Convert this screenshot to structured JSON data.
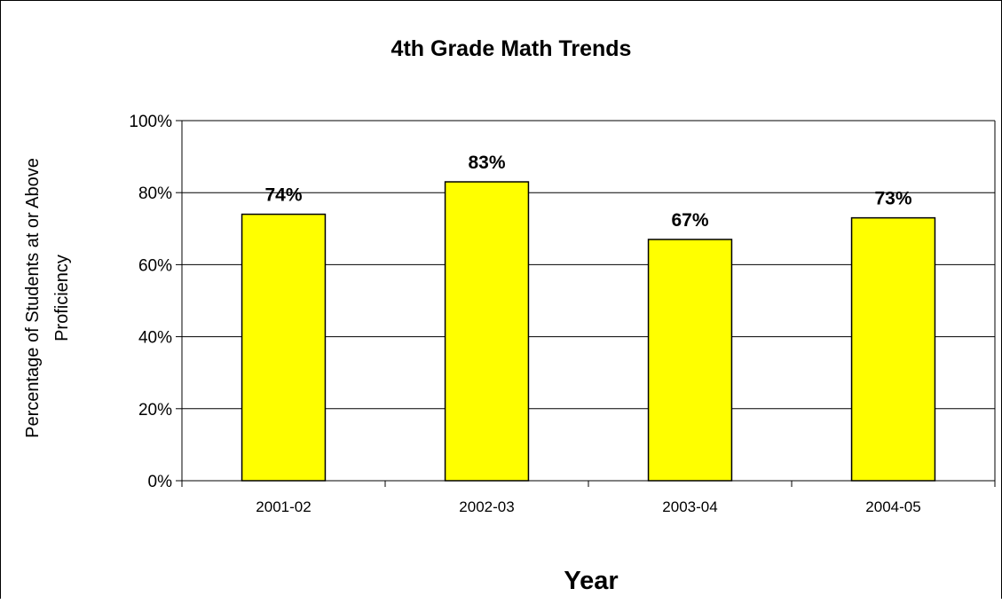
{
  "chart_data": {
    "type": "bar",
    "title": "4th Grade Math Trends",
    "xlabel": "Year",
    "ylabel_lines": [
      "Percentage of Students at or Above",
      "Proficiency"
    ],
    "categories": [
      "2001-02",
      "2002-03",
      "2003-04",
      "2004-05"
    ],
    "values": [
      74,
      83,
      67,
      73
    ],
    "data_labels": [
      "74%",
      "83%",
      "67%",
      "73%"
    ],
    "ylim": [
      0,
      100
    ],
    "yticks": [
      0,
      20,
      40,
      60,
      80,
      100
    ],
    "ytick_labels": [
      "0%",
      "20%",
      "40%",
      "60%",
      "80%",
      "100%"
    ],
    "grid": true,
    "bar_color": "#ffff00",
    "bar_edge_color": "#000000"
  }
}
